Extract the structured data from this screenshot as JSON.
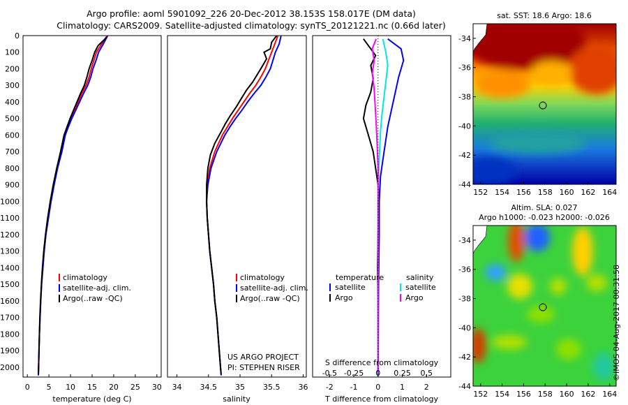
{
  "header": {
    "line1": "Argo profile: aoml 5901092_226 20-Dec-2012 38.153S 158.017E (DM data)",
    "line2": "Climatology: CARS2009. Satellite-adjusted climatology: synTS_20121221.nc (0.66d later)"
  },
  "colors": {
    "climatology": "#ff0000",
    "satellite": "#0000ff",
    "argo": "#000000",
    "sal_satellite": "#00e5ee",
    "sal_argo": "#ff00ff"
  },
  "depth_axis": {
    "ticks": [
      "0",
      "100",
      "200",
      "300",
      "400",
      "500",
      "600",
      "700",
      "800",
      "900",
      "1000",
      "1100",
      "1200",
      "1300",
      "1400",
      "1500",
      "1600",
      "1700",
      "1800",
      "1900",
      "2000"
    ]
  },
  "panels": {
    "temperature": {
      "xlabel": "temperature (deg C)",
      "ticks": [
        "0",
        "5",
        "10",
        "15",
        "20",
        "25",
        "30"
      ],
      "legend": [
        "climatology",
        "satellite-adj. clim.",
        "Argo(..raw -QC)"
      ]
    },
    "salinity": {
      "xlabel": "salinity",
      "ticks": [
        "34",
        "34.5",
        "35",
        "35.5",
        "36"
      ],
      "legend": [
        "climatology",
        "satellite-adj. clim.",
        "Argo(..raw -QC)"
      ],
      "note1": "US ARGO PROJECT",
      "note2": "PI: STEPHEN RISER"
    },
    "difference": {
      "top_ticks": [
        "-0.5",
        "-0.25",
        "0",
        "0.25",
        "0.5"
      ],
      "bottom_ticks": [
        "-2",
        "-1",
        "0",
        "1",
        "2"
      ],
      "top_label": "S difference from climatology",
      "xlabel": "T difference from climatology",
      "legend_t_head": "temperature",
      "legend_s_head": "salinity",
      "legend_items": [
        "satellite",
        "Argo",
        "satellite",
        "Argo"
      ]
    }
  },
  "maps": {
    "sst_title": "sat. SST: 18.6  Argo: 18.6",
    "sla_title1": "Altim. SLA: 0.027",
    "sla_title2": "Argo h1000: -0.023 h2000: -0.026",
    "lat_ticks": [
      "-34",
      "-36",
      "-38",
      "-40",
      "-42",
      "-44"
    ],
    "lon_ticks": [
      "152",
      "154",
      "156",
      "158",
      "160",
      "162",
      "164"
    ],
    "float_marker": "circle"
  },
  "side_text": "©IMOS 04-Aug-2017 00:31:58",
  "chart_data": [
    {
      "type": "line",
      "title": "",
      "xlabel": "temperature (deg C)",
      "ylabel": "",
      "xlim": [
        -1,
        31
      ],
      "ylim": [
        2060,
        0
      ],
      "series": [
        {
          "name": "climatology",
          "points": [
            [
              18.5,
              0
            ],
            [
              17.2,
              50
            ],
            [
              16,
              100
            ],
            [
              15.4,
              150
            ],
            [
              14.8,
              200
            ],
            [
              14.3,
              250
            ],
            [
              13.6,
              300
            ],
            [
              12.6,
              350
            ],
            [
              11.8,
              400
            ],
            [
              10.9,
              450
            ],
            [
              10,
              500
            ],
            [
              9.3,
              550
            ],
            [
              8.6,
              600
            ],
            [
              7.8,
              700
            ],
            [
              6.9,
              800
            ],
            [
              6.1,
              900
            ],
            [
              5.4,
              1000
            ],
            [
              4.8,
              1100
            ],
            [
              4.3,
              1200
            ],
            [
              3.9,
              1300
            ],
            [
              3.6,
              1400
            ],
            [
              3.3,
              1500
            ],
            [
              3.1,
              1600
            ],
            [
              2.95,
              1700
            ],
            [
              2.8,
              1800
            ],
            [
              2.7,
              1900
            ],
            [
              2.6,
              2000
            ],
            [
              2.55,
              2050
            ]
          ]
        },
        {
          "name": "satellite-adj. clim.",
          "points": [
            [
              18.6,
              0
            ],
            [
              17.6,
              50
            ],
            [
              16.5,
              100
            ],
            [
              15.9,
              150
            ],
            [
              15.2,
              200
            ],
            [
              14.7,
              250
            ],
            [
              14,
              300
            ],
            [
              13,
              350
            ],
            [
              12.1,
              400
            ],
            [
              11.2,
              450
            ],
            [
              10.3,
              500
            ],
            [
              9.5,
              550
            ],
            [
              8.8,
              600
            ],
            [
              8,
              700
            ],
            [
              7,
              800
            ],
            [
              6.2,
              900
            ],
            [
              5.5,
              1000
            ],
            [
              4.9,
              1100
            ],
            [
              4.3,
              1200
            ],
            [
              3.9,
              1300
            ],
            [
              3.6,
              1400
            ],
            [
              3.3,
              1500
            ],
            [
              3.1,
              1600
            ],
            [
              2.95,
              1700
            ],
            [
              2.8,
              1800
            ],
            [
              2.7,
              1900
            ],
            [
              2.6,
              2000
            ],
            [
              2.55,
              2050
            ]
          ]
        },
        {
          "name": "Argo(..raw -QC)",
          "points": [
            [
              18.4,
              10
            ],
            [
              16.4,
              60
            ],
            [
              15.6,
              100
            ],
            [
              15,
              150
            ],
            [
              14.3,
              200
            ],
            [
              13.8,
              250
            ],
            [
              13.2,
              300
            ],
            [
              12.3,
              350
            ],
            [
              11.5,
              400
            ],
            [
              10.7,
              450
            ],
            [
              9.9,
              500
            ],
            [
              9.2,
              550
            ],
            [
              8.5,
              600
            ],
            [
              7.7,
              700
            ],
            [
              6.8,
              800
            ],
            [
              6,
              900
            ],
            [
              5.3,
              1000
            ],
            [
              4.7,
              1100
            ],
            [
              4.2,
              1200
            ],
            [
              3.8,
              1300
            ],
            [
              3.5,
              1400
            ],
            [
              3.25,
              1500
            ],
            [
              3.05,
              1600
            ],
            [
              2.9,
              1700
            ],
            [
              2.8,
              1800
            ],
            [
              2.7,
              1900
            ],
            [
              2.6,
              2000
            ],
            [
              2.55,
              2040
            ]
          ]
        }
      ]
    },
    {
      "type": "line",
      "title": "",
      "xlabel": "salinity",
      "ylabel": "",
      "xlim": [
        33.85,
        36.05
      ],
      "ylim": [
        2060,
        0
      ],
      "series": [
        {
          "name": "climatology",
          "points": [
            [
              35.6,
              0
            ],
            [
              35.55,
              50
            ],
            [
              35.5,
              100
            ],
            [
              35.45,
              150
            ],
            [
              35.4,
              200
            ],
            [
              35.33,
              250
            ],
            [
              35.25,
              300
            ],
            [
              35.15,
              350
            ],
            [
              35.06,
              400
            ],
            [
              34.97,
              450
            ],
            [
              34.88,
              500
            ],
            [
              34.8,
              550
            ],
            [
              34.72,
              600
            ],
            [
              34.6,
              700
            ],
            [
              34.52,
              800
            ],
            [
              34.48,
              900
            ],
            [
              34.47,
              1000
            ],
            [
              34.48,
              1100
            ],
            [
              34.5,
              1200
            ],
            [
              34.52,
              1300
            ],
            [
              34.55,
              1400
            ],
            [
              34.58,
              1500
            ],
            [
              34.6,
              1600
            ],
            [
              34.63,
              1700
            ],
            [
              34.65,
              1800
            ],
            [
              34.67,
              1900
            ],
            [
              34.69,
              2000
            ],
            [
              34.7,
              2050
            ]
          ]
        },
        {
          "name": "satellite-adj. clim.",
          "points": [
            [
              35.65,
              0
            ],
            [
              35.62,
              50
            ],
            [
              35.56,
              100
            ],
            [
              35.52,
              150
            ],
            [
              35.48,
              200
            ],
            [
              35.41,
              250
            ],
            [
              35.33,
              300
            ],
            [
              35.22,
              350
            ],
            [
              35.12,
              400
            ],
            [
              35.03,
              450
            ],
            [
              34.93,
              500
            ],
            [
              34.84,
              550
            ],
            [
              34.76,
              600
            ],
            [
              34.63,
              700
            ],
            [
              34.54,
              800
            ],
            [
              34.49,
              900
            ],
            [
              34.47,
              1000
            ],
            [
              34.48,
              1100
            ],
            [
              34.5,
              1200
            ],
            [
              34.52,
              1300
            ],
            [
              34.55,
              1400
            ],
            [
              34.58,
              1500
            ],
            [
              34.6,
              1600
            ],
            [
              34.63,
              1700
            ],
            [
              34.65,
              1800
            ],
            [
              34.67,
              1900
            ],
            [
              34.69,
              2000
            ],
            [
              34.7,
              2050
            ]
          ]
        },
        {
          "name": "Argo(..raw -QC)",
          "points": [
            [
              35.58,
              0
            ],
            [
              35.5,
              40
            ],
            [
              35.48,
              80
            ],
            [
              35.38,
              100
            ],
            [
              35.42,
              140
            ],
            [
              35.36,
              180
            ],
            [
              35.28,
              230
            ],
            [
              35.2,
              280
            ],
            [
              35.1,
              330
            ],
            [
              35.02,
              380
            ],
            [
              34.94,
              430
            ],
            [
              34.85,
              480
            ],
            [
              34.77,
              530
            ],
            [
              34.7,
              580
            ],
            [
              34.6,
              650
            ],
            [
              34.53,
              720
            ],
            [
              34.49,
              800
            ],
            [
              34.47,
              900
            ],
            [
              34.47,
              1000
            ],
            [
              34.48,
              1100
            ],
            [
              34.5,
              1200
            ],
            [
              34.52,
              1300
            ],
            [
              34.55,
              1400
            ],
            [
              34.58,
              1500
            ],
            [
              34.6,
              1600
            ],
            [
              34.63,
              1700
            ],
            [
              34.65,
              1800
            ],
            [
              34.67,
              1900
            ],
            [
              34.69,
              2000
            ],
            [
              34.7,
              2040
            ]
          ]
        }
      ]
    },
    {
      "type": "line",
      "title": "",
      "xlabel": "T difference from climatology",
      "ylabel": "",
      "xlim": [
        -2.7,
        3
      ],
      "ylim": [
        2060,
        0
      ],
      "series": [
        {
          "name": "satellite",
          "points": [
            [
              0.4,
              20
            ],
            [
              0.95,
              80
            ],
            [
              1.05,
              150
            ],
            [
              0.85,
              250
            ],
            [
              0.7,
              350
            ],
            [
              0.55,
              450
            ],
            [
              0.4,
              550
            ],
            [
              0.3,
              650
            ],
            [
              0.2,
              750
            ],
            [
              0.1,
              850
            ],
            [
              0.05,
              1000
            ],
            [
              0.05,
              1200
            ],
            [
              0.02,
              1500
            ],
            [
              0.0,
              2050
            ]
          ]
        },
        {
          "name": "Argo",
          "points": [
            [
              -0.6,
              20
            ],
            [
              -0.4,
              60
            ],
            [
              -0.1,
              120
            ],
            [
              -0.3,
              180
            ],
            [
              -0.2,
              260
            ],
            [
              -0.3,
              340
            ],
            [
              -0.5,
              420
            ],
            [
              -0.6,
              500
            ],
            [
              -0.4,
              600
            ],
            [
              -0.2,
              700
            ],
            [
              -0.1,
              800
            ],
            [
              0.0,
              900
            ],
            [
              0.05,
              1000
            ],
            [
              0.02,
              1100
            ],
            [
              0.0,
              1200
            ],
            [
              -0.02,
              1400
            ],
            [
              0.0,
              1600
            ],
            [
              0.0,
              2040
            ]
          ]
        }
      ]
    },
    {
      "type": "line",
      "title": "",
      "xlabel": "S difference from climatology",
      "ylabel": "",
      "xlim": [
        -0.675,
        0.75
      ],
      "ylim": [
        2060,
        0
      ],
      "series": [
        {
          "name": "satellite",
          "points": [
            [
              0.05,
              20
            ],
            [
              0.08,
              100
            ],
            [
              0.1,
              180
            ],
            [
              0.08,
              280
            ],
            [
              0.06,
              380
            ],
            [
              0.04,
              480
            ],
            [
              0.025,
              580
            ],
            [
              0.015,
              700
            ],
            [
              0.005,
              850
            ],
            [
              0,
              1000
            ],
            [
              0,
              2050
            ]
          ]
        },
        {
          "name": "Argo",
          "points": [
            [
              -0.02,
              20
            ],
            [
              -0.06,
              80
            ],
            [
              -0.04,
              150
            ],
            [
              -0.06,
              230
            ],
            [
              -0.04,
              320
            ],
            [
              -0.03,
              420
            ],
            [
              -0.02,
              520
            ],
            [
              -0.01,
              650
            ],
            [
              0,
              800
            ],
            [
              0,
              2040
            ]
          ]
        }
      ]
    }
  ]
}
